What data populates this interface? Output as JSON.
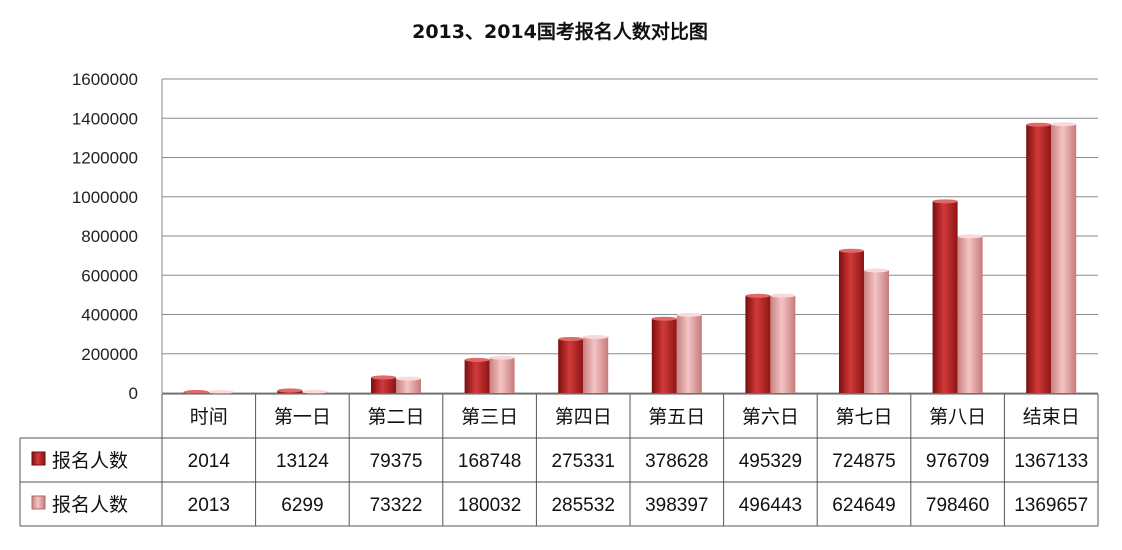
{
  "chart_data": {
    "type": "bar",
    "title": "2013、2014国考报名人数对比图",
    "ylim": [
      0,
      1600000
    ],
    "yticks": [
      0,
      200000,
      400000,
      600000,
      800000,
      1000000,
      1200000,
      1400000,
      1600000
    ],
    "grid": true,
    "first_column_header": "时间",
    "categories": [
      "时间",
      "第一日",
      "第二日",
      "第三日",
      "第四日",
      "第五日",
      "第六日",
      "第七日",
      "第八日",
      "结束日"
    ],
    "series": [
      {
        "name": "报名人数",
        "year": "2014",
        "values": [
          2014,
          13124,
          79375,
          168748,
          275331,
          378628,
          495329,
          724875,
          976709,
          1367133
        ],
        "color": "#b22222"
      },
      {
        "name": "报名人数",
        "year": "2013",
        "values": [
          2013,
          6299,
          73322,
          180032,
          285532,
          398397,
          496443,
          624649,
          798460,
          1369657
        ],
        "color": "#e6a0a0"
      }
    ]
  }
}
